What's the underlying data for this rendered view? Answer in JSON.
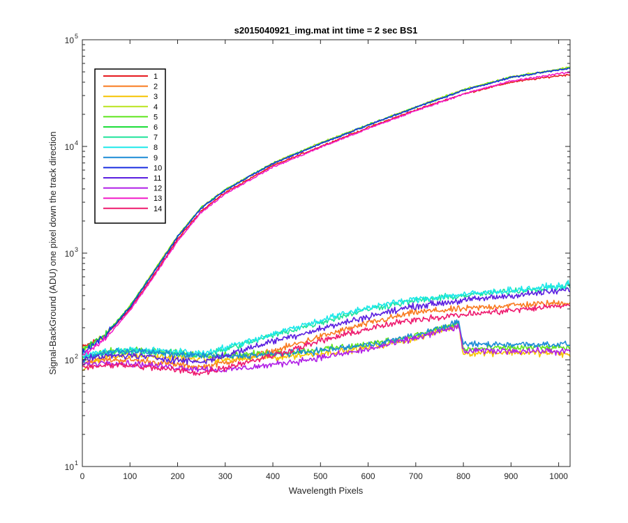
{
  "chart_data": {
    "type": "line",
    "title": "s2015040921_img.mat int time = 2 sec   BS1",
    "xlabel": "Wavelength Pixels",
    "ylabel": "Signal-BackGround (ADU) one pixel down the track direction",
    "xlim": [
      0,
      1024
    ],
    "ylim": [
      10,
      100000
    ],
    "yscale": "log",
    "grid": false,
    "legend_position": "top-left",
    "x_ticks": [
      "0",
      "100",
      "200",
      "300",
      "400",
      "500",
      "600",
      "700",
      "800",
      "900",
      "1000"
    ],
    "y_ticks": [
      {
        "base": "10",
        "exp": "1",
        "value": 10
      },
      {
        "base": "10",
        "exp": "2",
        "value": 100
      },
      {
        "base": "10",
        "exp": "3",
        "value": 1000
      },
      {
        "base": "10",
        "exp": "4",
        "value": 10000
      },
      {
        "base": "10",
        "exp": "5",
        "value": 100000
      }
    ],
    "series": [
      {
        "name": "1",
        "color": "#e6191e",
        "kind": "top",
        "x": [
          0,
          20,
          50,
          100,
          150,
          200,
          250,
          300,
          400,
          500,
          600,
          700,
          800,
          900,
          1000,
          1024
        ],
        "y": [
          130,
          145,
          170,
          300,
          620,
          1350,
          2500,
          3700,
          6600,
          10000,
          15000,
          22000,
          31000,
          40000,
          46000,
          47000
        ]
      },
      {
        "name": "2",
        "color": "#f97a1f",
        "kind": "mid",
        "x": [
          0,
          50,
          100,
          200,
          250,
          300,
          400,
          500,
          600,
          700,
          800,
          900,
          1000,
          1024
        ],
        "y": [
          95,
          100,
          100,
          90,
          85,
          95,
          120,
          165,
          220,
          280,
          300,
          325,
          340,
          345
        ]
      },
      {
        "name": "3",
        "color": "#f5c400",
        "kind": "low",
        "x": [
          0,
          50,
          100,
          200,
          300,
          400,
          500,
          600,
          700,
          790,
          800,
          900,
          1000,
          1024
        ],
        "y": [
          80,
          110,
          110,
          105,
          100,
          105,
          115,
          130,
          160,
          210,
          115,
          118,
          115,
          110
        ]
      },
      {
        "name": "4",
        "color": "#b9e31c",
        "kind": "top",
        "x": [
          0,
          20,
          50,
          100,
          150,
          200,
          250,
          300,
          400,
          500,
          600,
          700,
          800,
          900,
          1000,
          1024
        ],
        "y": [
          125,
          140,
          175,
          320,
          680,
          1450,
          2700,
          3950,
          7000,
          10800,
          16000,
          23500,
          34000,
          45000,
          53000,
          55000
        ]
      },
      {
        "name": "5",
        "color": "#5ee51c",
        "kind": "low",
        "x": [
          0,
          50,
          100,
          200,
          300,
          400,
          500,
          600,
          700,
          790,
          800,
          900,
          1000,
          1024
        ],
        "y": [
          100,
          120,
          125,
          115,
          110,
          115,
          125,
          140,
          170,
          220,
          125,
          130,
          130,
          130
        ]
      },
      {
        "name": "6",
        "color": "#1cdd3a",
        "kind": "top",
        "x": [
          0,
          20,
          50,
          100,
          150,
          200,
          250,
          300,
          400,
          500,
          600,
          700,
          800,
          900,
          1000,
          1024
        ],
        "y": [
          120,
          140,
          175,
          320,
          670,
          1430,
          2680,
          3920,
          6950,
          10700,
          15900,
          23300,
          33600,
          44500,
          52500,
          54500
        ]
      },
      {
        "name": "7",
        "color": "#1de39a",
        "kind": "mid",
        "x": [
          0,
          50,
          100,
          200,
          250,
          300,
          400,
          500,
          600,
          700,
          800,
          900,
          1000,
          1024
        ],
        "y": [
          105,
          115,
          120,
          115,
          110,
          125,
          170,
          225,
          300,
          360,
          400,
          440,
          480,
          500
        ]
      },
      {
        "name": "8",
        "color": "#1ee8ea",
        "kind": "mid",
        "x": [
          0,
          50,
          100,
          200,
          250,
          300,
          400,
          500,
          600,
          700,
          800,
          900,
          1000,
          1024
        ],
        "y": [
          110,
          120,
          125,
          120,
          115,
          130,
          175,
          235,
          310,
          370,
          410,
          450,
          490,
          510
        ]
      },
      {
        "name": "9",
        "color": "#1b8bd6",
        "kind": "low",
        "x": [
          0,
          50,
          100,
          200,
          300,
          400,
          500,
          600,
          700,
          790,
          800,
          900,
          1000,
          1024
        ],
        "y": [
          100,
          118,
          122,
          112,
          108,
          112,
          122,
          138,
          168,
          225,
          140,
          140,
          140,
          140
        ]
      },
      {
        "name": "10",
        "color": "#1a2ee0",
        "kind": "top",
        "x": [
          0,
          20,
          50,
          100,
          150,
          200,
          250,
          300,
          400,
          500,
          600,
          700,
          800,
          900,
          1000,
          1024
        ],
        "y": [
          115,
          135,
          170,
          310,
          660,
          1420,
          2650,
          3900,
          6900,
          10600,
          15800,
          23200,
          33500,
          44300,
          52300,
          54300
        ]
      },
      {
        "name": "11",
        "color": "#5a1fe0",
        "kind": "mid",
        "x": [
          0,
          50,
          100,
          200,
          250,
          300,
          400,
          500,
          600,
          700,
          800,
          900,
          1000,
          1024
        ],
        "y": [
          100,
          108,
          110,
          100,
          95,
          110,
          150,
          195,
          255,
          320,
          360,
          400,
          440,
          460
        ]
      },
      {
        "name": "12",
        "color": "#b01ee6",
        "kind": "low",
        "x": [
          0,
          50,
          100,
          200,
          300,
          400,
          500,
          600,
          700,
          790,
          800,
          900,
          1000,
          1024
        ],
        "y": [
          90,
          95,
          92,
          85,
          80,
          90,
          105,
          125,
          160,
          205,
          120,
          122,
          120,
          120
        ]
      },
      {
        "name": "13",
        "color": "#f21bc8",
        "kind": "top",
        "x": [
          0,
          20,
          50,
          100,
          150,
          200,
          250,
          300,
          400,
          500,
          600,
          700,
          800,
          900,
          1000,
          1024
        ],
        "y": [
          110,
          125,
          160,
          290,
          600,
          1300,
          2420,
          3600,
          6400,
          9800,
          14700,
          21600,
          31000,
          41000,
          48000,
          49500
        ]
      },
      {
        "name": "14",
        "color": "#ee1a6e",
        "kind": "mid",
        "x": [
          0,
          50,
          100,
          200,
          250,
          300,
          400,
          500,
          600,
          700,
          800,
          900,
          1000,
          1024
        ],
        "y": [
          85,
          90,
          88,
          80,
          75,
          85,
          110,
          150,
          195,
          240,
          265,
          290,
          320,
          330
        ]
      }
    ]
  }
}
